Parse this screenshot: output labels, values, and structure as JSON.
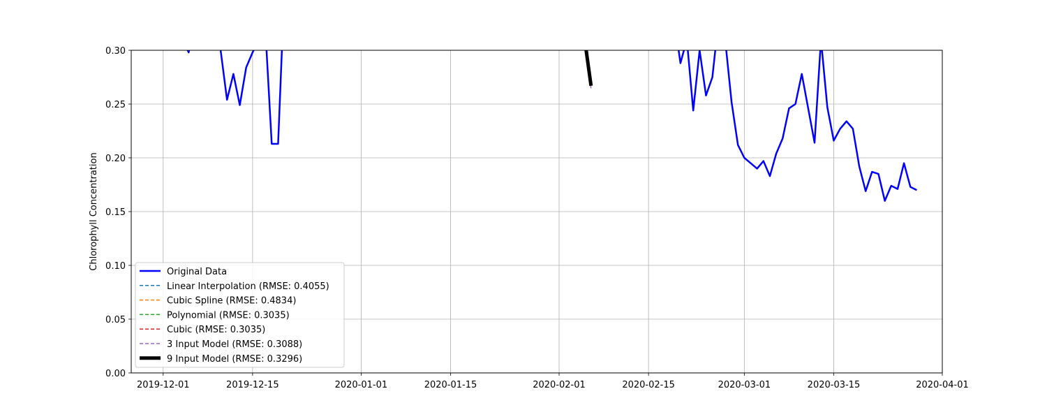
{
  "chart_data": {
    "type": "line",
    "title": "",
    "xlabel": "",
    "ylabel": "Chlorophyll Concentration",
    "ylim": [
      0.0,
      0.3
    ],
    "xlim": [
      "2019-11-26",
      "2020-04-01"
    ],
    "grid": true,
    "legend_position": "lower-left",
    "x_ticks": [
      "2019-12-01",
      "2019-12-15",
      "2020-01-01",
      "2020-01-15",
      "2020-02-01",
      "2020-02-15",
      "2020-03-01",
      "2020-03-15",
      "2020-04-01"
    ],
    "y_ticks": [
      "0.00",
      "0.05",
      "0.10",
      "0.15",
      "0.20",
      "0.25",
      "0.30"
    ],
    "series": [
      {
        "name": "Original Data",
        "color": "#0000ff",
        "style": "solid",
        "width": 2.5,
        "segments": [
          [
            {
              "x": "2019-12-04",
              "y": 0.31
            },
            {
              "x": "2019-12-05",
              "y": 0.298
            },
            {
              "x": "2019-12-06",
              "y": 0.33
            }
          ],
          [
            {
              "x": "2019-12-09",
              "y": 0.35
            },
            {
              "x": "2019-12-10",
              "y": 0.3
            },
            {
              "x": "2019-12-11",
              "y": 0.254
            },
            {
              "x": "2019-12-12",
              "y": 0.278
            },
            {
              "x": "2019-12-13",
              "y": 0.249
            },
            {
              "x": "2019-12-14",
              "y": 0.284
            },
            {
              "x": "2019-12-15",
              "y": 0.298
            },
            {
              "x": "2019-12-16",
              "y": 0.31
            },
            {
              "x": "2019-12-17",
              "y": 0.32
            },
            {
              "x": "2019-12-18",
              "y": 0.213
            },
            {
              "x": "2019-12-19",
              "y": 0.213
            },
            {
              "x": "2019-12-20",
              "y": 0.36
            }
          ],
          [
            {
              "x": "2020-02-19",
              "y": 0.33
            },
            {
              "x": "2020-02-20",
              "y": 0.288
            },
            {
              "x": "2020-02-21",
              "y": 0.31
            },
            {
              "x": "2020-02-22",
              "y": 0.244
            },
            {
              "x": "2020-02-23",
              "y": 0.3
            },
            {
              "x": "2020-02-24",
              "y": 0.258
            },
            {
              "x": "2020-02-25",
              "y": 0.275
            },
            {
              "x": "2020-02-26",
              "y": 0.33
            },
            {
              "x": "2020-02-27",
              "y": 0.31
            },
            {
              "x": "2020-02-28",
              "y": 0.252
            },
            {
              "x": "2020-02-29",
              "y": 0.212
            },
            {
              "x": "2020-03-01",
              "y": 0.2
            },
            {
              "x": "2020-03-02",
              "y": 0.195
            },
            {
              "x": "2020-03-03",
              "y": 0.19
            },
            {
              "x": "2020-03-04",
              "y": 0.197
            },
            {
              "x": "2020-03-05",
              "y": 0.183
            },
            {
              "x": "2020-03-06",
              "y": 0.204
            },
            {
              "x": "2020-03-07",
              "y": 0.218
            },
            {
              "x": "2020-03-08",
              "y": 0.246
            },
            {
              "x": "2020-03-09",
              "y": 0.25
            },
            {
              "x": "2020-03-10",
              "y": 0.278
            },
            {
              "x": "2020-03-11",
              "y": 0.246
            },
            {
              "x": "2020-03-12",
              "y": 0.214
            },
            {
              "x": "2020-03-13",
              "y": 0.31
            },
            {
              "x": "2020-03-14",
              "y": 0.247
            },
            {
              "x": "2020-03-15",
              "y": 0.216
            },
            {
              "x": "2020-03-16",
              "y": 0.227
            },
            {
              "x": "2020-03-17",
              "y": 0.234
            },
            {
              "x": "2020-03-18",
              "y": 0.227
            },
            {
              "x": "2020-03-19",
              "y": 0.192
            },
            {
              "x": "2020-03-20",
              "y": 0.169
            },
            {
              "x": "2020-03-21",
              "y": 0.187
            },
            {
              "x": "2020-03-22",
              "y": 0.185
            },
            {
              "x": "2020-03-23",
              "y": 0.16
            },
            {
              "x": "2020-03-24",
              "y": 0.174
            },
            {
              "x": "2020-03-25",
              "y": 0.171
            },
            {
              "x": "2020-03-26",
              "y": 0.195
            },
            {
              "x": "2020-03-27",
              "y": 0.173
            },
            {
              "x": "2020-03-28",
              "y": 0.17
            }
          ]
        ]
      },
      {
        "name": "Linear Interpolation (RMSE: 0.4055)",
        "color": "#1f77b4",
        "style": "dashed",
        "width": 1.5,
        "segments": []
      },
      {
        "name": "Cubic Spline (RMSE: 0.4834)",
        "color": "#ff7f0e",
        "style": "dashed",
        "width": 1.5,
        "segments": []
      },
      {
        "name": "Polynomial (RMSE: 0.3035)",
        "color": "#2ca02c",
        "style": "dashed",
        "width": 1.5,
        "segments": []
      },
      {
        "name": "Cubic (RMSE: 0.3035)",
        "color": "#d62728",
        "style": "dashed",
        "width": 1.5,
        "segments": []
      },
      {
        "name": "3 Input Model (RMSE: 0.3088)",
        "color": "#9467bd",
        "style": "dashed",
        "width": 1.5,
        "segments": [
          [
            {
              "x": "2020-02-05",
              "y": 0.33
            },
            {
              "x": "2020-02-06",
              "y": 0.264
            }
          ]
        ]
      },
      {
        "name": "9 Input Model (RMSE: 0.3296)",
        "color": "#000000",
        "style": "solid",
        "width": 5,
        "segments": [
          [
            {
              "x": "2020-02-05",
              "y": 0.31
            },
            {
              "x": "2020-02-06",
              "y": 0.267
            }
          ]
        ]
      }
    ]
  }
}
